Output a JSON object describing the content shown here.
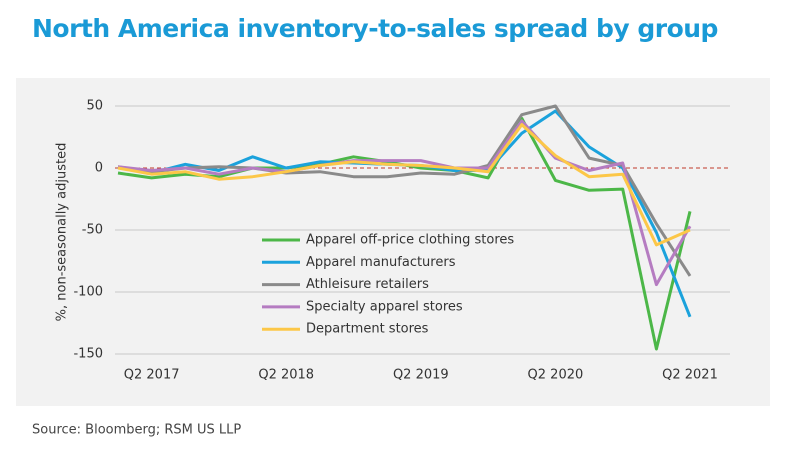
{
  "chart_data": {
    "type": "line",
    "title": "North America inventory-to-sales spread by group",
    "y_label": "%, non-seasonally adjusted",
    "source": "Source: Bloomberg; RSM US LLP",
    "categories": [
      null,
      "Q2 2017",
      null,
      null,
      null,
      "Q2 2018",
      null,
      null,
      null,
      "Q2 2019",
      null,
      null,
      null,
      "Q2 2020",
      null,
      null,
      null,
      "Q2 2021"
    ],
    "ylim": [
      -150,
      50
    ],
    "yticks": [
      50,
      0,
      -50,
      -100,
      -150
    ],
    "grid": true,
    "legend": "center",
    "series": [
      {
        "name": "Apparel off-price clothing stores",
        "color": "#4cb748",
        "values": [
          -4,
          -8,
          -5,
          -7,
          0,
          0,
          3,
          9,
          5,
          0,
          -2,
          -8,
          40,
          -10,
          -18,
          -17,
          -146,
          -35
        ]
      },
      {
        "name": "Apparel manufacturers",
        "color": "#1ba2dc",
        "values": [
          1,
          -4,
          3,
          -2,
          9,
          0,
          5,
          4,
          3,
          2,
          -2,
          -2,
          28,
          46,
          17,
          0,
          -52,
          -120
        ]
      },
      {
        "name": "Athleisure retailers",
        "color": "#8a8a8a",
        "values": [
          1,
          -3,
          0,
          1,
          0,
          -4,
          -3,
          -7,
          -7,
          -4,
          -5,
          2,
          43,
          50,
          8,
          2,
          -45,
          -87
        ]
      },
      {
        "name": "Specialty apparel stores",
        "color": "#b57cc1",
        "values": [
          1,
          -2,
          0,
          -5,
          0,
          -3,
          2,
          6,
          6,
          6,
          0,
          0,
          38,
          8,
          -2,
          4,
          -94,
          -47
        ]
      },
      {
        "name": "Department stores",
        "color": "#fcc748",
        "values": [
          0,
          -5,
          -3,
          -9,
          -7,
          -3,
          2,
          5,
          3,
          2,
          0,
          -3,
          35,
          10,
          -7,
          -5,
          -62,
          -50
        ]
      }
    ]
  }
}
